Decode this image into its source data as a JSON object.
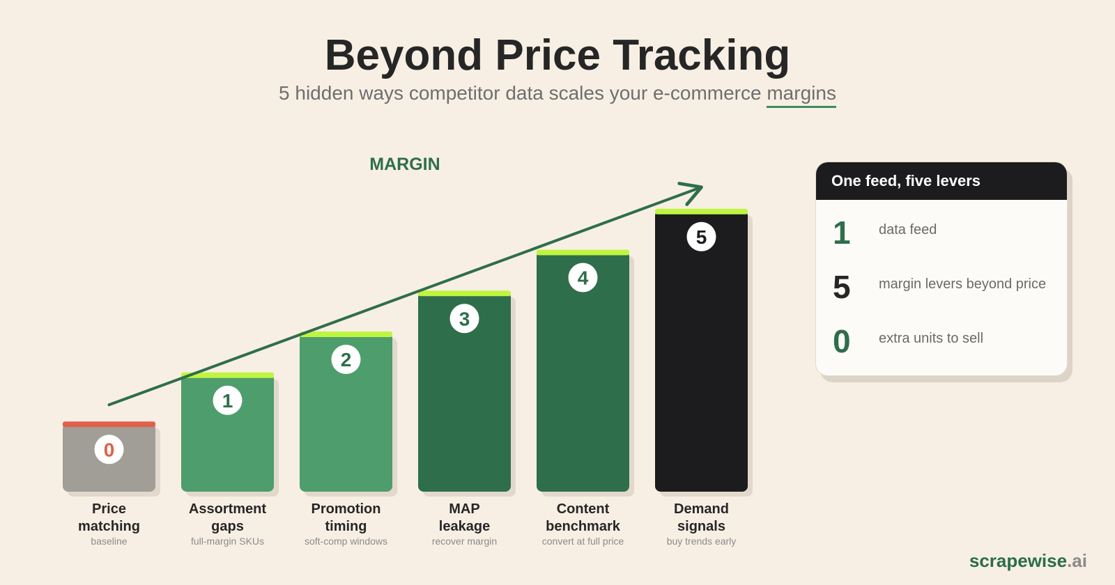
{
  "header": {
    "title": "Beyond Price Tracking",
    "subtitle_main": "5 hidden ways competitor data scales your e-commerce",
    "subtitle_highlight": "margins"
  },
  "chart_data": {
    "type": "bar",
    "arrow_label": "MARGIN",
    "categories": [
      {
        "label_line1": "Price",
        "label_line2": "matching",
        "caption": "baseline"
      },
      {
        "label_line1": "Assortment",
        "label_line2": "gaps",
        "caption": "full-margin SKUs"
      },
      {
        "label_line1": "Promotion",
        "label_line2": "timing",
        "caption": "soft-comp windows"
      },
      {
        "label_line1": "MAP",
        "label_line2": "leakage",
        "caption": "recover margin"
      },
      {
        "label_line1": "Content",
        "label_line2": "benchmark",
        "caption": "convert at full price"
      },
      {
        "label_line1": "Demand",
        "label_line2": "signals",
        "caption": "buy trends early"
      }
    ],
    "values": [
      0.21,
      0.36,
      0.485,
      0.61,
      0.735,
      0.86
    ],
    "badges": [
      "0",
      "1",
      "2",
      "3",
      "4",
      "5"
    ],
    "colors": {
      "baseline_bar": "#a09e96",
      "baseline_cap": "#e0604a",
      "baseline_badge_text": "#e0604a",
      "light_green": "#4e9d6d",
      "dark_green": "#2e6e4b",
      "final_bar": "#1c1c1f",
      "cap": "#bff542",
      "arrow": "#2e6e4b"
    }
  },
  "panel": {
    "title": "One feed, five levers",
    "stats": [
      {
        "value": "1",
        "label": "data feed",
        "color": "#2e6e4b"
      },
      {
        "value": "5",
        "label": "margin levers beyond price",
        "color": "#262626"
      },
      {
        "value": "0",
        "label": "extra units to sell",
        "color": "#2e6e4b"
      }
    ]
  },
  "brand": {
    "name": "scrapewise",
    "tld": ".ai"
  }
}
